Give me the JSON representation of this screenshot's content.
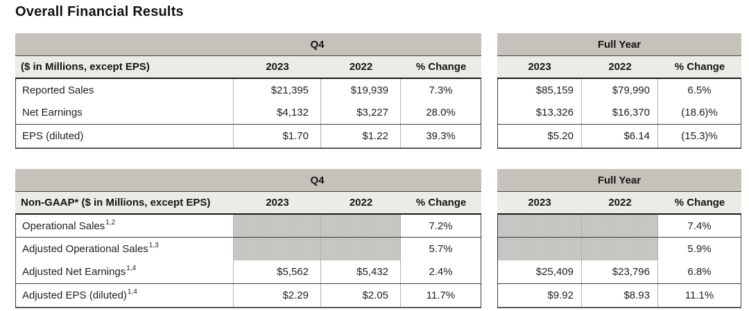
{
  "title": "Overall Financial Results",
  "periods": {
    "q4": "Q4",
    "full_year": "Full Year"
  },
  "columns": {
    "y2023": "2023",
    "y2022": "2022",
    "change": "% Change"
  },
  "colors": {
    "band_bg": "#c6c1ba",
    "subheader_bg": "#edebe6",
    "hatch_dark": "#b2b0ad",
    "hatch_light": "#dedcd8",
    "border_dark": "#161616",
    "border_light": "#b3b1ae"
  },
  "gaap": {
    "label_header": "($ in Millions, except EPS)",
    "rows": [
      {
        "label": "Reported Sales",
        "q4_2023": "$21,395",
        "q4_2022": "$19,939",
        "q4_change": "7.3%",
        "fy_2023": "$85,159",
        "fy_2022": "$79,990",
        "fy_change": "6.5%"
      },
      {
        "label": "Net Earnings",
        "q4_2023": "$4,132",
        "q4_2022": "$3,227",
        "q4_change": "28.0%",
        "fy_2023": "$13,326",
        "fy_2022": "$16,370",
        "fy_change": "(18.6)%"
      },
      {
        "label": "EPS (diluted)",
        "q4_2023": "$1.70",
        "q4_2022": "$1.22",
        "q4_change": "39.3%",
        "fy_2023": "$5.20",
        "fy_2022": "$6.14",
        "fy_change": "(15.3)%"
      }
    ]
  },
  "non_gaap": {
    "label_header": "Non-GAAP* ($ in Millions, except EPS)",
    "rows": [
      {
        "label": "Operational Sales",
        "footnote": "1,2",
        "q4_2023": "",
        "q4_2022": "",
        "q4_change": "7.2%",
        "fy_2023": "",
        "fy_2022": "",
        "fy_change": "7.4%",
        "hatched": true
      },
      {
        "label": "Adjusted Operational Sales",
        "footnote": "1,3",
        "q4_2023": "",
        "q4_2022": "",
        "q4_change": "5.7%",
        "fy_2023": "",
        "fy_2022": "",
        "fy_change": "5.9%",
        "hatched": true
      },
      {
        "label": "Adjusted Net Earnings",
        "footnote": "1,4",
        "q4_2023": "$5,562",
        "q4_2022": "$5,432",
        "q4_change": "2.4%",
        "fy_2023": "$25,409",
        "fy_2022": "$23,796",
        "fy_change": "6.8%",
        "hatched": false
      },
      {
        "label": "Adjusted EPS (diluted)",
        "footnote": "1,4",
        "q4_2023": "$2.29",
        "q4_2022": "$2.05",
        "q4_change": "11.7%",
        "fy_2023": "$9.92",
        "fy_2022": "$8.93",
        "fy_change": "11.1%",
        "hatched": false
      }
    ]
  }
}
